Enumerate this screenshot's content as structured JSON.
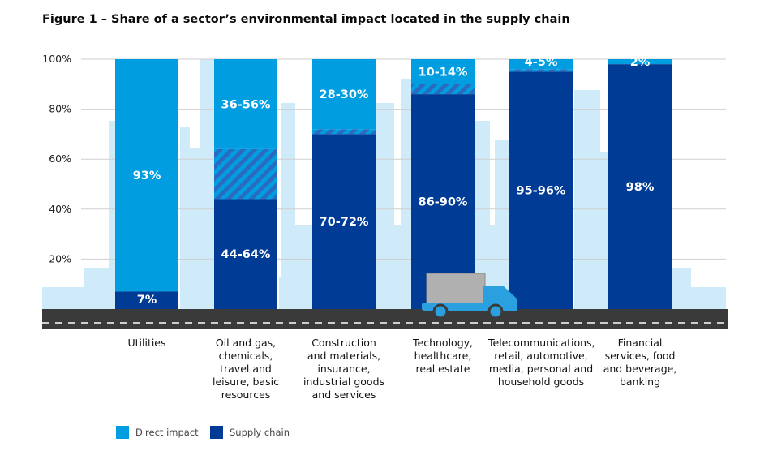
{
  "title": "Figure 1 – Share of a sector’s environmental impact located in the supply chain",
  "colors": {
    "direct": "#009ee0",
    "supply": "#003c96",
    "skyline": "#cfeaf8",
    "road": "#3a3a3a",
    "grid": "#cfcfcf",
    "truck_body": "#b0b0b0",
    "truck_cab": "#2aa0e0"
  },
  "chart_data": {
    "type": "bar",
    "stacked": true,
    "ylim": [
      0,
      100
    ],
    "yticks": [
      "20%",
      "40%",
      "60%",
      "80%",
      "100%"
    ],
    "grid": true,
    "legend_position": "bottom-left",
    "categories": [
      [
        "Utilities"
      ],
      [
        "Oil and gas,",
        "chemicals,",
        "travel and",
        "leisure, basic",
        "resources"
      ],
      [
        "Construction",
        "and materials,",
        "insurance,",
        "industrial goods",
        "and services"
      ],
      [
        "Technology,",
        "healthcare,",
        "real estate"
      ],
      [
        "Telecommunications,",
        "retail, automotive,",
        "media, personal and",
        "household goods"
      ],
      [
        "Financial",
        "services, food",
        "and beverage,",
        "banking"
      ]
    ],
    "series": [
      {
        "name": "Supply chain",
        "values": [
          7,
          44,
          70,
          86,
          95,
          98
        ],
        "upper": [
          7,
          64,
          72,
          90,
          96,
          98
        ],
        "labels": [
          "7%",
          "44-64%",
          "70-72%",
          "86-90%",
          "95-96%",
          "98%"
        ]
      },
      {
        "name": "Direct impact",
        "values": [
          93,
          36,
          28,
          10,
          4,
          2
        ],
        "upper": [
          93,
          56,
          30,
          14,
          5,
          2
        ],
        "labels": [
          "93%",
          "36-56%",
          "28-30%",
          "10-14%",
          "4-5%",
          "2%"
        ]
      }
    ]
  },
  "legend": {
    "direct": "Direct impact",
    "supply": "Supply chain"
  }
}
